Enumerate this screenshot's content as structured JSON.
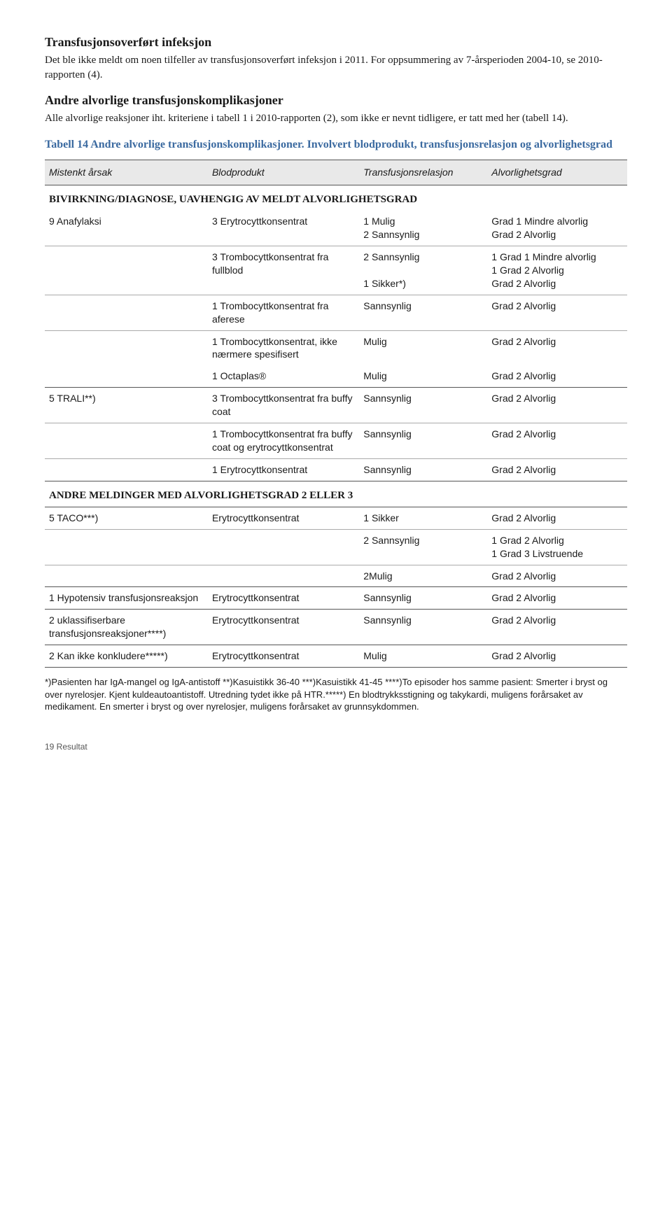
{
  "section1": {
    "heading": "Transfusjonsoverført infeksjon",
    "text": "Det ble ikke meldt om noen tilfeller av transfusjonsoverført infeksjon i 2011. For oppsummering av 7-årsperioden 2004-10, se 2010-rapporten (4)."
  },
  "section2": {
    "heading": "Andre alvorlige transfusjonskomplikasjoner",
    "text": "Alle alvorlige reaksjoner iht. kriteriene i tabell 1 i 2010-rapporten (2), som ikke er nevnt tidligere, er tatt med her (tabell 14)."
  },
  "table": {
    "title": "Tabell 14 Andre alvorlige transfusjonskomplikasjoner. Involvert blodprodukt, transfusjonsrelasjon og alvorlighetsgrad",
    "columns": [
      "Mistenkt årsak",
      "Blodprodukt",
      "Transfusjonsrelasjon",
      "Alvorlighetsgrad"
    ],
    "sectionA_title": "BIVIRKNING/DIAGNOSE, UAVHENGIG AV MELDT ALVORLIGHETSGRAD",
    "r1": {
      "a": "9 Anafylaksi",
      "b": "3 Erytrocyttkonsentrat",
      "c": "1 Mulig\n2 Sannsynlig",
      "d": "Grad 1 Mindre alvorlig\nGrad 2 Alvorlig"
    },
    "r2": {
      "a": "",
      "b": "3 Trombocyttkonsentrat fra fullblod",
      "c": "2 Sannsynlig\n\n1 Sikker*)",
      "d": "1 Grad 1 Mindre alvorlig\n1 Grad 2 Alvorlig\nGrad 2 Alvorlig"
    },
    "r3": {
      "a": "",
      "b": "1 Trombocyttkonsentrat fra aferese",
      "c": "Sannsynlig",
      "d": "Grad 2 Alvorlig"
    },
    "r4": {
      "a": "",
      "b": "1 Trombocyttkonsentrat, ikke nærmere spesifisert",
      "c": "Mulig",
      "d": "Grad 2 Alvorlig"
    },
    "r5": {
      "a": "",
      "b": "1 Octaplas®",
      "c": "Mulig",
      "d": "Grad 2 Alvorlig"
    },
    "r6": {
      "a": "5 TRALI**)",
      "b": "3 Trombocyttkonsentrat fra buffy coat",
      "c": "Sannsynlig",
      "d": "Grad 2 Alvorlig"
    },
    "r7": {
      "a": "",
      "b": "1 Trombocyttkonsentrat fra buffy coat og erytrocyttkonsentrat",
      "c": "Sannsynlig",
      "d": "Grad 2 Alvorlig"
    },
    "r8": {
      "a": "",
      "b": "1 Erytrocyttkonsentrat",
      "c": "Sannsynlig",
      "d": "Grad 2 Alvorlig"
    },
    "sectionB_title": "ANDRE MELDINGER MED ALVORLIGHETSGRAD 2 ELLER 3",
    "r9": {
      "a": "5 TACO***)",
      "b": "Erytrocyttkonsentrat",
      "c": "1 Sikker",
      "d": "Grad 2 Alvorlig"
    },
    "r10": {
      "a": "",
      "b": "",
      "c": "2 Sannsynlig",
      "d": "1 Grad 2 Alvorlig\n1 Grad 3 Livstruende"
    },
    "r11": {
      "a": "",
      "b": "",
      "c": "2Mulig",
      "d": " Grad 2 Alvorlig"
    },
    "r12": {
      "a": "1 Hypotensiv transfusjonsreaksjon",
      "b": "Erytrocyttkonsentrat",
      "c": "Sannsynlig",
      "d": "Grad 2 Alvorlig"
    },
    "r13": {
      "a": "2 uklassifiserbare transfusjonsreaksjoner****)",
      "b": "Erytrocyttkonsentrat",
      "c": "Sannsynlig",
      "d": "Grad 2 Alvorlig"
    },
    "r14": {
      "a": "2 Kan ikke konkludere*****)",
      "b": "Erytrocyttkonsentrat",
      "c": "Mulig",
      "d": "Grad 2 Alvorlig"
    }
  },
  "footnote": "*)Pasienten har IgA-mangel og IgA-antistoff **)Kasuistikk 36-40 ***)Kasuistikk 41-45 ****)To episoder hos samme pasient: Smerter i bryst og over nyrelosjer. Kjent kuldeautoantistoff. Utredning tydet ikke på HTR.*****) En blodtrykksstigning og takykardi, muligens forårsaket av medikament. En smerter i bryst og over nyrelosjer, muligens forårsaket av grunnsykdommen.",
  "footer": "19 Resultat",
  "colors": {
    "title_blue": "#3b6aa0",
    "header_bg": "#e9e9e9",
    "rule": "#555555",
    "light_rule": "#aaaaaa"
  }
}
